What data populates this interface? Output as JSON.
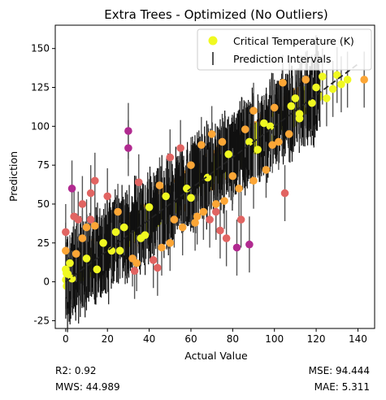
{
  "chart_data": {
    "type": "scatter",
    "title": "Extra Trees - Optimized (No Outliers)",
    "xlabel": "Actual Value",
    "ylabel": "Prediction",
    "xlim": [
      -5,
      148
    ],
    "ylim": [
      -30,
      165
    ],
    "xticks": [
      0,
      20,
      40,
      60,
      80,
      100,
      120,
      140
    ],
    "yticks": [
      -25,
      0,
      25,
      50,
      75,
      100,
      125,
      150
    ],
    "grid": false,
    "legend": {
      "placement": "top-right",
      "entries": [
        "Critical Temperature (K)",
        "Prediction Intervals"
      ]
    },
    "reference_line": {
      "type": "identity",
      "style": "dashed",
      "color": "#222222"
    },
    "bulk_band": {
      "description_points": [
        [
          0,
          3
        ],
        [
          20,
          22
        ],
        [
          40,
          40
        ],
        [
          60,
          58
        ],
        [
          80,
          78
        ],
        [
          100,
          98
        ],
        [
          120,
          118
        ]
      ],
      "spread": 14
    },
    "series": [
      {
        "name": "Critical Temperature (K)",
        "colormap": [
          "#f0f921",
          "#fca636",
          "#e16462",
          "#b12a90"
        ],
        "points": [
          [
            0,
            8
          ],
          [
            1,
            5
          ],
          [
            2,
            12
          ],
          [
            0,
            20
          ],
          [
            0,
            32
          ],
          [
            3,
            2
          ],
          [
            5,
            18
          ],
          [
            8,
            28
          ],
          [
            10,
            15
          ],
          [
            12,
            40
          ],
          [
            14,
            36
          ],
          [
            15,
            8
          ],
          [
            18,
            25
          ],
          [
            20,
            55
          ],
          [
            22,
            20
          ],
          [
            25,
            45
          ],
          [
            28,
            35
          ],
          [
            30,
            97
          ],
          [
            30,
            86
          ],
          [
            33,
            7
          ],
          [
            35,
            64
          ],
          [
            38,
            30
          ],
          [
            40,
            48
          ],
          [
            42,
            14
          ],
          [
            45,
            62
          ],
          [
            48,
            55
          ],
          [
            50,
            80
          ],
          [
            52,
            40
          ],
          [
            55,
            86
          ],
          [
            58,
            60
          ],
          [
            60,
            75
          ],
          [
            62,
            38
          ],
          [
            65,
            88
          ],
          [
            68,
            67
          ],
          [
            70,
            95
          ],
          [
            72,
            50
          ],
          [
            75,
            90
          ],
          [
            78,
            82
          ],
          [
            80,
            68
          ],
          [
            82,
            22
          ],
          [
            84,
            40
          ],
          [
            86,
            98
          ],
          [
            88,
            90
          ],
          [
            90,
            110
          ],
          [
            92,
            85
          ],
          [
            95,
            102
          ],
          [
            98,
            100
          ],
          [
            100,
            112
          ],
          [
            102,
            90
          ],
          [
            104,
            128
          ],
          [
            105,
            57
          ],
          [
            108,
            113
          ],
          [
            110,
            118
          ],
          [
            112,
            105
          ],
          [
            115,
            130
          ],
          [
            118,
            115
          ],
          [
            120,
            125
          ],
          [
            123,
            132
          ],
          [
            125,
            118
          ],
          [
            128,
            124
          ],
          [
            130,
            133
          ],
          [
            132,
            127
          ],
          [
            135,
            130
          ],
          [
            143,
            130
          ],
          [
            3,
            60
          ],
          [
            8,
            50
          ],
          [
            12,
            57
          ],
          [
            14,
            65
          ],
          [
            36,
            28
          ],
          [
            44,
            9
          ],
          [
            60,
            54
          ],
          [
            66,
            45
          ],
          [
            74,
            33
          ],
          [
            77,
            28
          ],
          [
            88,
            24
          ],
          [
            4,
            42
          ],
          [
            6,
            40
          ],
          [
            10,
            35
          ],
          [
            24,
            32
          ],
          [
            26,
            20
          ],
          [
            32,
            15
          ],
          [
            34,
            12
          ],
          [
            46,
            22
          ],
          [
            50,
            25
          ],
          [
            56,
            35
          ],
          [
            63,
            42
          ],
          [
            69,
            40
          ],
          [
            72,
            45
          ],
          [
            76,
            52
          ],
          [
            83,
            60
          ],
          [
            90,
            65
          ],
          [
            96,
            72
          ],
          [
            99,
            88
          ],
          [
            107,
            95
          ],
          [
            112,
            108
          ]
        ]
      },
      {
        "name": "Prediction Intervals",
        "type": "errorbar",
        "half_width": 18,
        "color": "#555555"
      }
    ]
  },
  "stats": {
    "r2": "R2: 0.92",
    "mws": "MWS: 44.989",
    "mse": "MSE: 94.444",
    "mae": "MAE: 5.311"
  }
}
